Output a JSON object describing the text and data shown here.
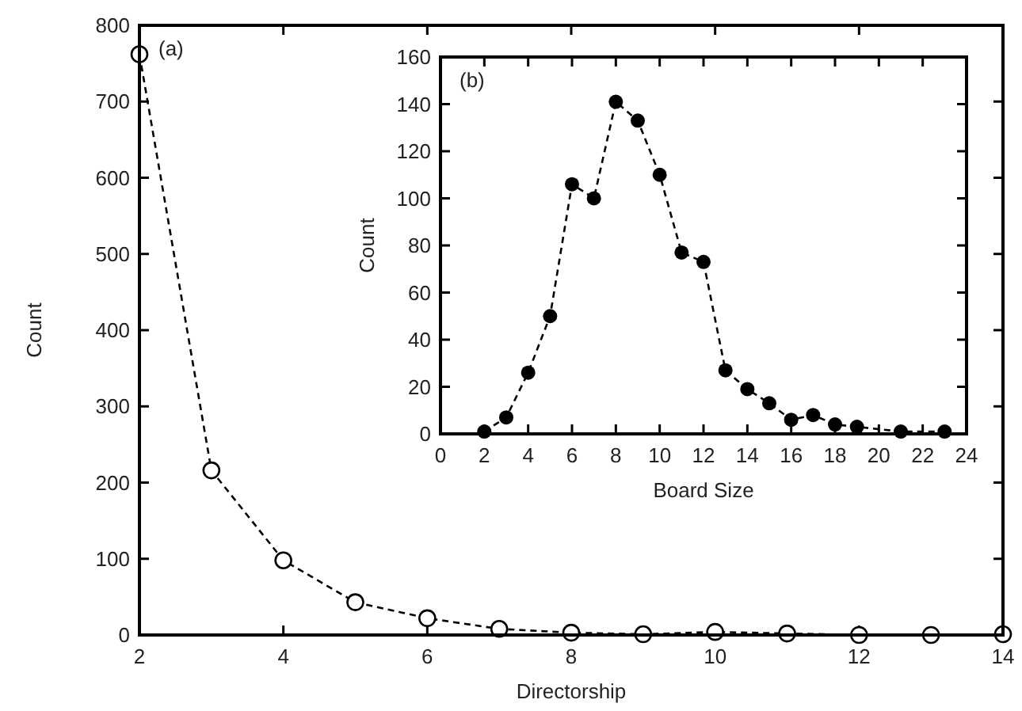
{
  "chart_data": [
    {
      "type": "line",
      "xlabel": "Directorship",
      "ylabel": "Count",
      "annotations": [
        "(a)"
      ],
      "x": [
        2,
        3,
        4,
        5,
        6,
        7,
        8,
        9,
        10,
        11,
        12,
        13,
        14
      ],
      "series": [
        {
          "color": "#000000",
          "values": [
            762,
            216,
            98,
            43,
            22,
            8,
            3,
            1,
            4,
            2,
            0,
            0,
            1
          ]
        }
      ],
      "xlim": [
        2,
        14
      ],
      "xticks": [
        2,
        4,
        6,
        8,
        10,
        12,
        14
      ],
      "ylim": [
        0,
        800
      ],
      "yticks": [
        0,
        100,
        200,
        300,
        400,
        500,
        600,
        700,
        800
      ],
      "grid": false,
      "marker": "circle",
      "line_style": "dashed"
    },
    {
      "type": "line",
      "xlabel": "Board Size",
      "ylabel": "Count",
      "annotations": [
        "(b)"
      ],
      "x": [
        2,
        3,
        4,
        5,
        6,
        7,
        8,
        9,
        10,
        11,
        12,
        13,
        14,
        15,
        16,
        17,
        18,
        19,
        21,
        23
      ],
      "series": [
        {
          "color": "#000000",
          "values": [
            1,
            7,
            26,
            50,
            106,
            100,
            141,
            133,
            110,
            77,
            73,
            27,
            19,
            13,
            6,
            8,
            4,
            3,
            1,
            1
          ]
        }
      ],
      "xlim": [
        0,
        24
      ],
      "xticks": [
        0,
        2,
        4,
        6,
        8,
        10,
        12,
        14,
        16,
        18,
        20,
        22,
        24
      ],
      "ylim": [
        0,
        160
      ],
      "yticks": [
        0,
        20,
        40,
        60,
        80,
        100,
        120,
        140,
        160
      ],
      "grid": false,
      "marker": "filled-circle",
      "line_style": "dashed"
    }
  ]
}
